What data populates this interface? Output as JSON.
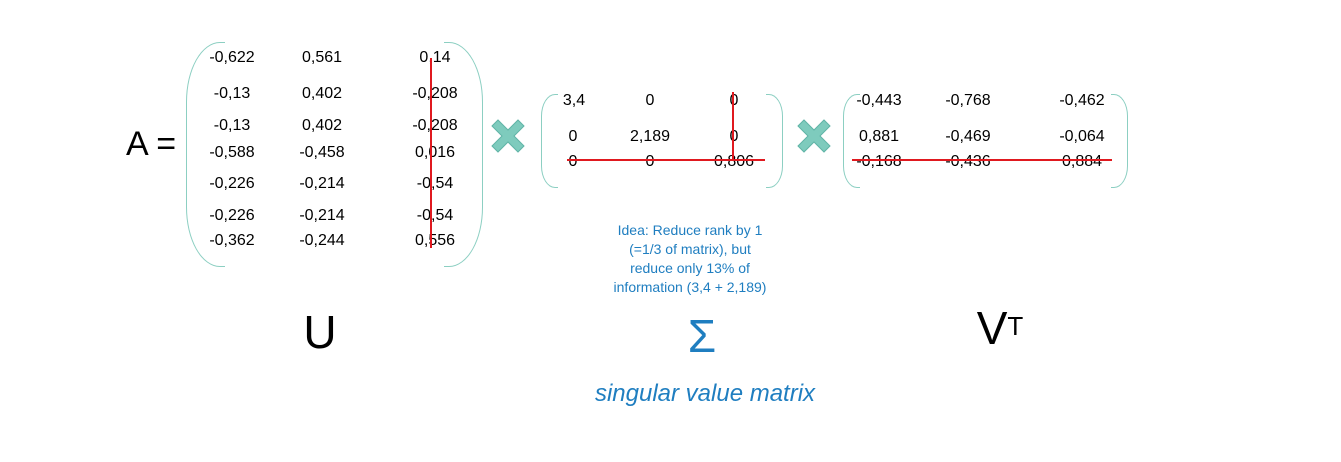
{
  "equation_label": "A =",
  "u_matrix": {
    "label": "U",
    "rows": [
      [
        "-0,622",
        "0,561",
        "0,14"
      ],
      [
        "-0,13",
        "0,402",
        "-0,208"
      ],
      [
        "-0,13",
        "0,402",
        "-0,208"
      ],
      [
        "-0,588",
        "-0,458",
        "0,016"
      ],
      [
        "-0,226",
        "-0,214",
        "-0,54"
      ],
      [
        "-0,226",
        "-0,214",
        "-0,54"
      ],
      [
        "-0,362",
        "-0,244",
        "0,556"
      ]
    ]
  },
  "sigma_matrix": {
    "label": "Σ",
    "rows": [
      [
        "3,4",
        "0",
        "0"
      ],
      [
        "0",
        "2,189",
        "0"
      ],
      [
        "0",
        "0",
        "0,806"
      ]
    ]
  },
  "vt_matrix": {
    "label_base": "V",
    "label_sup": "T",
    "rows": [
      [
        "-0,443",
        "-0,768",
        "-0,462"
      ],
      [
        "0,881",
        "-0,469",
        "-0,064"
      ],
      [
        "-0,168",
        "-0,436",
        "0,884"
      ]
    ]
  },
  "note_lines": [
    "Idea: Reduce rank by 1",
    "(=1/3 of matrix), but",
    "reduce only 13% of",
    "information (3,4 + 2,189)"
  ],
  "caption": "singular value matrix",
  "colors": {
    "bracket": "#8ccfc2",
    "times_icon": "#7ecbbd",
    "strike": "#e0191f",
    "accent_text": "#1f7ec0"
  }
}
